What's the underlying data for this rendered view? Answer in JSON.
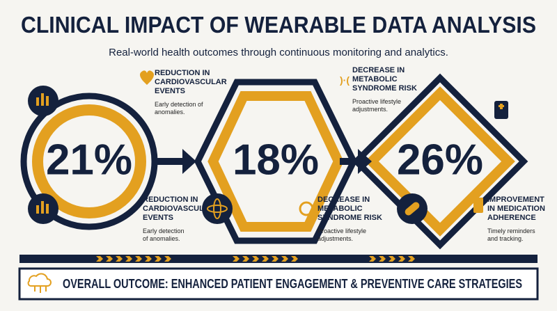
{
  "header": {
    "title": "CLINICAL IMPACT OF WEARABLE DATA ANALYSIS",
    "subtitle": "Real-world health outcomes through continuous monitoring and analytics."
  },
  "stats": [
    "21%",
    "18%",
    "26%"
  ],
  "callouts": [
    {
      "title": [
        "REDUCTION IN",
        "CARDIOVASCULAR",
        "EVENTS"
      ],
      "description": [
        "Early detection of",
        "anomalies."
      ]
    },
    {
      "title": [
        "REDUCTION IN",
        "CARDIOVASCUL",
        "EVENTS"
      ],
      "description": [
        "Early detection",
        "of anomalies."
      ]
    },
    {
      "title": [
        "DECREASE IN",
        "METABOLIC",
        "SYNDROME RISK"
      ],
      "description": [
        "Proactive lifestyle",
        "adjustments."
      ]
    },
    {
      "title": [
        "DECREASE IN",
        "METABOLIC",
        "SYNDROME RISK"
      ],
      "description": [
        "Proactive lifestyle",
        "adjustments."
      ]
    },
    {
      "title": [
        "IMPROVEMENT",
        "IN MEDICATION",
        "ADHERENCE"
      ],
      "description": [
        "Timely reminders",
        "and tracking."
      ]
    }
  ],
  "footer": {
    "outcome": "OVERALL OUTCOME: ENHANCED PATIENT ENGAGEMENT & PREVENTIVE CARE STRATEGIES"
  }
}
